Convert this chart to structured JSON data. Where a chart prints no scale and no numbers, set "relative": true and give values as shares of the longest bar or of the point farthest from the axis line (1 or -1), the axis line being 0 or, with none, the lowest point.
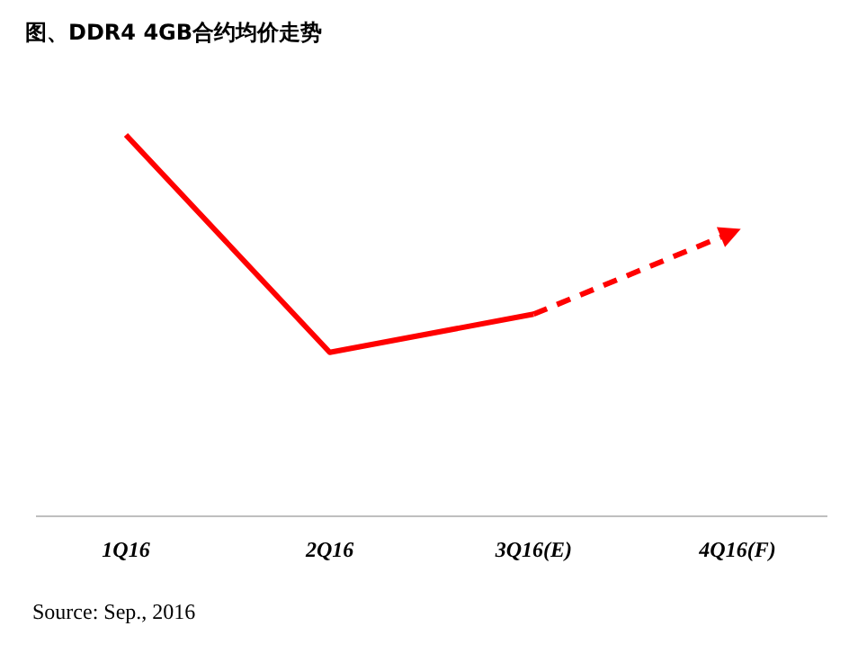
{
  "chart_data": {
    "type": "line",
    "title": "图、DDR4 4GB合约均价走势",
    "relative": true,
    "categories": [
      "1Q16",
      "2Q16",
      "3Q16(E)",
      "4Q16(F)"
    ],
    "series": [
      {
        "color": "#ff0000",
        "values": [
          1,
          0.43,
          0.53,
          null
        ],
        "line_style": "solid"
      },
      {
        "color": "#ff0000",
        "values": [
          null,
          null,
          0.53,
          0.75
        ],
        "line_style": "dashed"
      }
    ],
    "annotations": [
      "Source: Sep., 2016"
    ],
    "marker": "none"
  }
}
